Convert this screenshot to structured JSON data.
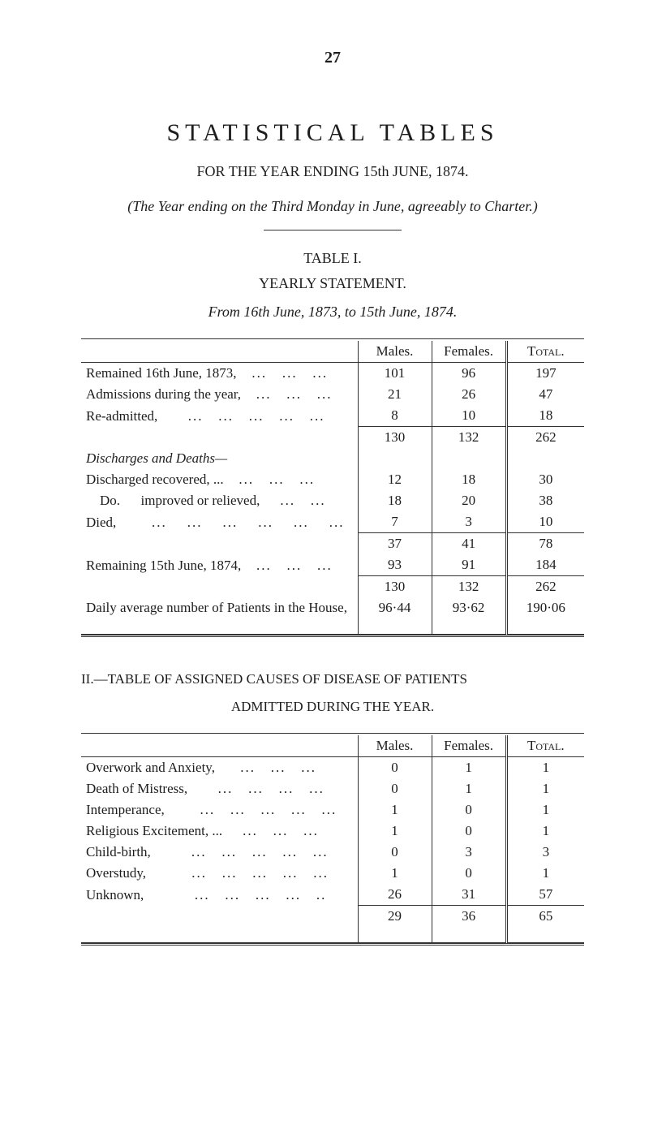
{
  "page_number": "27",
  "main_title": "STATISTICAL TABLES",
  "subtitle": "FOR THE YEAR ENDING 15th JUNE, 1874.",
  "charter_line": "(The Year ending on the Third Monday in June, agreeably to Charter.)",
  "table1": {
    "label": "TABLE I.",
    "heading": "YEARLY STATEMENT.",
    "date_range": "From 16th June, 1873, to 15th June, 1874.",
    "columns": {
      "c1": "Males.",
      "c2": "Females.",
      "c3": "Total."
    },
    "rows_top": [
      {
        "label": "Remained 16th June, 1873,",
        "m": "101",
        "f": "96",
        "t": "197"
      },
      {
        "label": "Admissions during the year,",
        "m": "21",
        "f": "26",
        "t": "47"
      },
      {
        "label": "Re-admitted,",
        "m": "8",
        "f": "10",
        "t": "18"
      }
    ],
    "subtotal1": {
      "m": "130",
      "f": "132",
      "t": "262"
    },
    "discharges_header": "Discharges and Deaths—",
    "rows_discharges": [
      {
        "label": "Discharged recovered, ...",
        "m": "12",
        "f": "18",
        "t": "30"
      },
      {
        "label": "    Do.      improved or relieved,",
        "m": "18",
        "f": "20",
        "t": "38"
      },
      {
        "label": "Died,",
        "m": "7",
        "f": "3",
        "t": "10"
      }
    ],
    "subtotal2": {
      "m": "37",
      "f": "41",
      "t": "78"
    },
    "remaining": {
      "label": "Remaining 15th June, 1874,",
      "m": "93",
      "f": "91",
      "t": "184"
    },
    "subtotal3": {
      "m": "130",
      "f": "132",
      "t": "262"
    },
    "daily_avg": {
      "label": "Daily average number of Patients in the House,",
      "m": "96·44",
      "f": "93·62",
      "t": "190·06"
    }
  },
  "table2": {
    "title": "II.—TABLE OF ASSIGNED CAUSES OF DISEASE OF PATIENTS",
    "subtitle": "ADMITTED DURING THE YEAR.",
    "columns": {
      "c1": "Males.",
      "c2": "Females.",
      "c3": "Total."
    },
    "rows": [
      {
        "label": "Overwork and Anxiety,",
        "m": "0",
        "f": "1",
        "t": "1"
      },
      {
        "label": "Death of Mistress,",
        "m": "0",
        "f": "1",
        "t": "1"
      },
      {
        "label": "Intemperance,",
        "m": "1",
        "f": "0",
        "t": "1"
      },
      {
        "label": "Religious Excitement, ...",
        "m": "1",
        "f": "0",
        "t": "1"
      },
      {
        "label": "Child-birth,",
        "m": "0",
        "f": "3",
        "t": "3"
      },
      {
        "label": "Overstudy,",
        "m": "1",
        "f": "0",
        "t": "1"
      },
      {
        "label": "Unknown,",
        "m": "26",
        "f": "31",
        "t": "57"
      }
    ],
    "totals": {
      "m": "29",
      "f": "36",
      "t": "65"
    }
  },
  "style": {
    "background": "#ffffff",
    "text_color": "#1d1d1d",
    "rule_color": "#333333",
    "font_family": "Times New Roman"
  }
}
